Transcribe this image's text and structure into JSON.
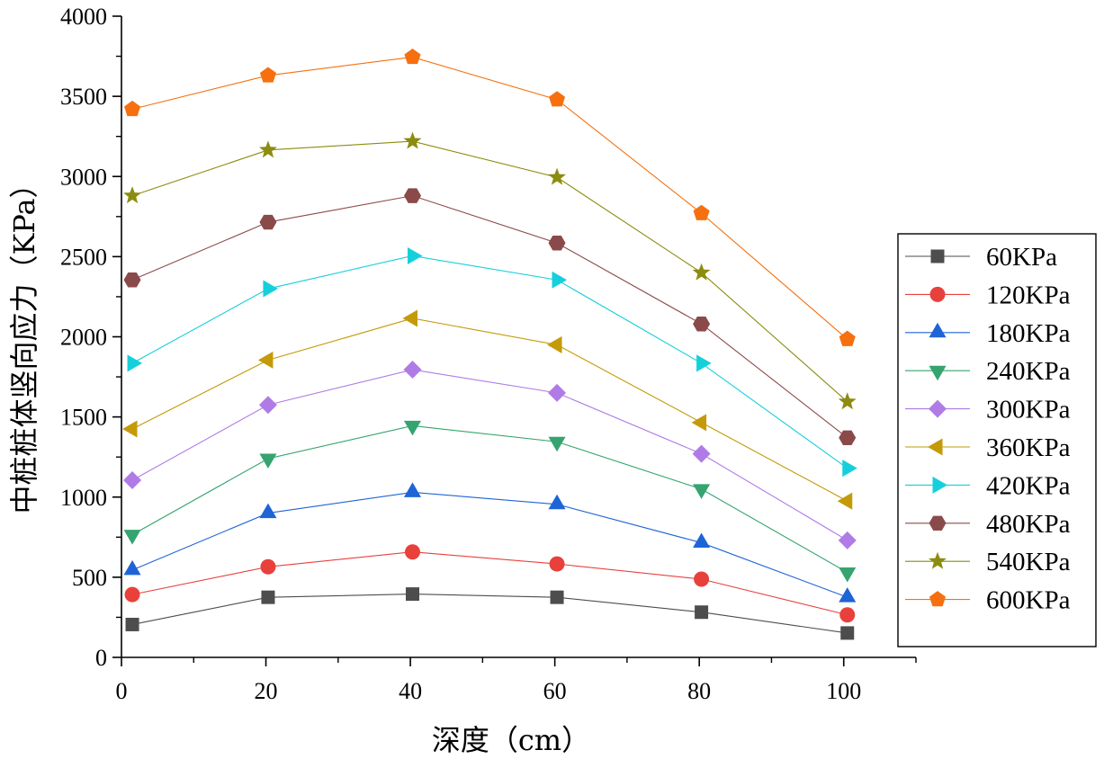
{
  "chart_data": {
    "type": "line",
    "xlabel": "深度（cm）",
    "ylabel": "中桩桩体竖向应力（KPa）",
    "xlim": [
      0,
      110
    ],
    "ylim": [
      0,
      4000
    ],
    "xticks": [
      0,
      20,
      40,
      60,
      80,
      100
    ],
    "yticks": [
      0,
      500,
      1000,
      1500,
      2000,
      2500,
      3000,
      3500,
      4000
    ],
    "x": [
      1.5,
      20.3,
      40.3,
      60.3,
      80.3,
      100.5
    ],
    "legend_position": "right",
    "grid": false,
    "series": [
      {
        "name": "60KPa",
        "color": "#4d4d4d",
        "marker": "square",
        "values": [
          205,
          375,
          395,
          375,
          282,
          152
        ]
      },
      {
        "name": "120KPa",
        "color": "#e8413c",
        "marker": "circle",
        "values": [
          392,
          565,
          658,
          583,
          488,
          265
        ]
      },
      {
        "name": "180KPa",
        "color": "#1f64d6",
        "marker": "triangle-up",
        "values": [
          545,
          900,
          1030,
          955,
          715,
          375
        ]
      },
      {
        "name": "240KPa",
        "color": "#35a46e",
        "marker": "triangle-down",
        "values": [
          765,
          1240,
          1445,
          1345,
          1050,
          530
        ]
      },
      {
        "name": "300KPa",
        "color": "#b07be6",
        "marker": "diamond",
        "values": [
          1105,
          1575,
          1795,
          1650,
          1270,
          730
        ]
      },
      {
        "name": "360KPa",
        "color": "#c49a08",
        "marker": "triangle-left",
        "values": [
          1425,
          1855,
          2115,
          1950,
          1465,
          975
        ]
      },
      {
        "name": "420KPa",
        "color": "#15d0da",
        "marker": "triangle-right",
        "values": [
          1835,
          2300,
          2505,
          2355,
          1835,
          1180
        ]
      },
      {
        "name": "480KPa",
        "color": "#8b4a4a",
        "marker": "hexagon",
        "values": [
          2355,
          2715,
          2880,
          2585,
          2080,
          1370
        ]
      },
      {
        "name": "540KPa",
        "color": "#8c8c10",
        "marker": "star",
        "values": [
          2880,
          3165,
          3220,
          2995,
          2400,
          1595
        ]
      },
      {
        "name": "600KPa",
        "color": "#f6700f",
        "marker": "pentagon",
        "values": [
          3420,
          3630,
          3745,
          3480,
          2770,
          1985
        ]
      }
    ]
  }
}
